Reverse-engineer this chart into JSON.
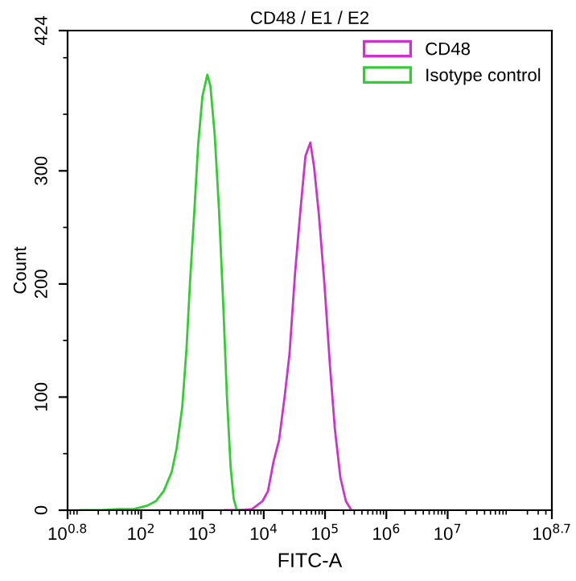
{
  "chart_data": {
    "type": "line",
    "title": "CD48 / E1 / E2",
    "xlabel": "FITC-A",
    "ylabel": "Count",
    "log": "x",
    "xlim": [
      6.30957,
      501187234
    ],
    "xticks": [
      {
        "value": 6.30957,
        "label": "10$^{0.8}$"
      },
      {
        "value": 100,
        "label": "10$^{2}$"
      },
      {
        "value": 1000,
        "label": "10$^{3}$"
      },
      {
        "value": 10000,
        "label": "10$^{4}$"
      },
      {
        "value": 100000,
        "label": "10$^{5}$"
      },
      {
        "value": 1000000,
        "label": "10$^{6}$"
      },
      {
        "value": 10000000,
        "label": "10$^{7}$"
      },
      {
        "value": 501187234,
        "label": "10$^{8.7}$"
      }
    ],
    "ylim": [
      0,
      424
    ],
    "yticks": [
      0,
      100,
      200,
      300,
      424
    ],
    "grid": false,
    "legend": "top right",
    "marker": "none",
    "line_style": "solid",
    "series": [
      {
        "name": "CD48",
        "color": "#cc33cc",
        "x": [
          2344,
          4266,
          6457,
          9550,
          11749,
          14454,
          17783,
          21878,
          26303,
          32359,
          39811,
          47863,
          57544,
          66069,
          79433,
          97724,
          120226,
          144544,
          177828,
          218776,
          269153
        ],
        "values": [
          0,
          0,
          1,
          8,
          17,
          43,
          62,
          100,
          138,
          209,
          266,
          313,
          325,
          304,
          261,
          200,
          128,
          72,
          29,
          8,
          0
        ]
      },
      {
        "name": "Isotype control",
        "color": "#33cc33",
        "x": [
          10.2,
          22.9,
          41.7,
          75.9,
          126,
          174,
          234,
          316,
          380,
          468,
          550,
          631,
          741,
          851,
          1000,
          1202,
          1349,
          1585,
          1862,
          2188,
          2512,
          2884,
          3236,
          3631,
          4266
        ],
        "values": [
          0,
          0,
          1,
          1,
          4,
          8,
          17,
          34,
          55,
          91,
          143,
          204,
          266,
          323,
          366,
          385,
          375,
          332,
          266,
          181,
          100,
          38,
          10,
          0,
          0
        ]
      }
    ]
  }
}
